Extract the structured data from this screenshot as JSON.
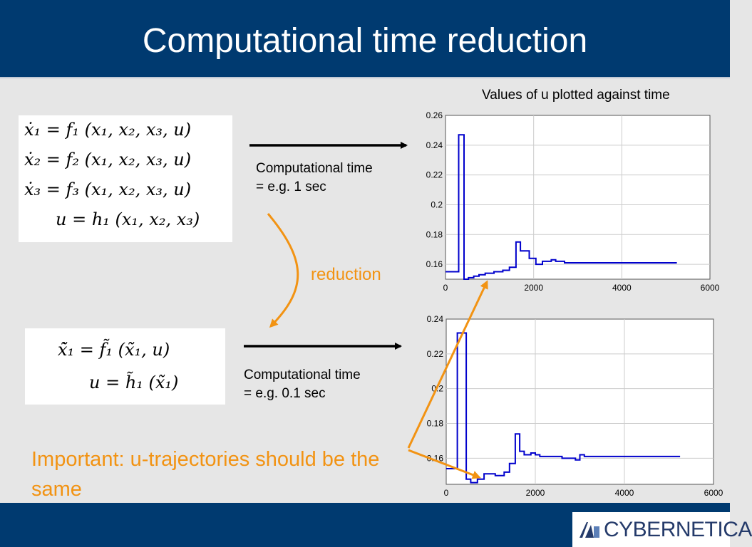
{
  "slide": {
    "title": "Computational time reduction",
    "chart_heading": "Values of u plotted against time",
    "reduction_label": "reduction",
    "important_note": "Important: u-trajectories should be the same",
    "logo_text": "CYBERNETICA"
  },
  "full_model": {
    "equations": [
      "ẋ₁ = f₁ (x₁, x₂, x₃, u)",
      "ẋ₂ = f₂ (x₁, x₂, x₃, u)",
      "ẋ₃ = f₃ (x₁, x₂, x₃, u)",
      "u = h₁ (x₁, x₂, x₃)"
    ],
    "time_line1": "Computational time",
    "time_line2": "= e.g. 1 sec"
  },
  "reduced_model": {
    "equations": [
      "x̃̇₁ = f̃₁ (x̃₁, u)",
      "u = h̃₁ (x̃₁)"
    ],
    "time_line1": "Computational time",
    "time_line2": "= e.g. 0.1 sec"
  },
  "colors": {
    "header": "#003a70",
    "accent": "#f29313",
    "series": "#0000cc"
  },
  "chart_data": [
    {
      "type": "line",
      "title": "",
      "xlabel": "",
      "ylabel": "",
      "xlim": [
        0,
        6000
      ],
      "ylim": [
        0.15,
        0.26
      ],
      "xticks": [
        "0",
        "2000",
        "4000",
        "6000"
      ],
      "xtick_values": [
        0,
        2000,
        4000,
        6000
      ],
      "yticks": [
        "0.16",
        "0.18",
        "0.2",
        "0.22",
        "0.24",
        "0.26"
      ],
      "ytick_values": [
        0.16,
        0.18,
        0.2,
        0.22,
        0.24,
        0.26
      ],
      "grid": true,
      "series": [
        {
          "x": [
            0,
            300,
            300,
            420,
            420,
            520,
            520,
            640,
            640,
            760,
            760,
            900,
            900,
            1100,
            1100,
            1300,
            1300,
            1450,
            1450,
            1600,
            1600,
            1700,
            1700,
            1900,
            1900,
            2050,
            2050,
            2200,
            2200,
            2400,
            2400,
            2500,
            2500,
            2700,
            2700,
            3000,
            3000,
            5250
          ],
          "y": [
            0.155,
            0.155,
            0.247,
            0.247,
            0.15,
            0.15,
            0.151,
            0.151,
            0.152,
            0.152,
            0.153,
            0.153,
            0.154,
            0.154,
            0.155,
            0.155,
            0.156,
            0.156,
            0.158,
            0.158,
            0.175,
            0.175,
            0.169,
            0.169,
            0.164,
            0.164,
            0.16,
            0.16,
            0.162,
            0.162,
            0.163,
            0.163,
            0.162,
            0.162,
            0.161,
            0.161,
            0.161,
            0.161
          ]
        }
      ]
    },
    {
      "type": "line",
      "title": "",
      "xlabel": "",
      "ylabel": "",
      "xlim": [
        0,
        6000
      ],
      "ylim": [
        0.145,
        0.24
      ],
      "xticks": [
        "0",
        "2000",
        "4000",
        "6000"
      ],
      "xtick_values": [
        0,
        2000,
        4000,
        6000
      ],
      "yticks": [
        "0.16",
        "0.18",
        "0.2",
        "0.22",
        "0.24"
      ],
      "ytick_values": [
        0.16,
        0.18,
        0.2,
        0.22,
        0.24
      ],
      "grid": true,
      "series": [
        {
          "x": [
            0,
            250,
            250,
            450,
            450,
            550,
            550,
            700,
            700,
            850,
            850,
            1100,
            1100,
            1300,
            1300,
            1420,
            1420,
            1550,
            1550,
            1650,
            1650,
            1750,
            1750,
            1900,
            1900,
            2000,
            2000,
            2100,
            2100,
            2300,
            2300,
            2600,
            2600,
            2900,
            2900,
            3000,
            3000,
            3100,
            3100,
            3200,
            3200,
            4000,
            4000,
            5250
          ],
          "y": [
            0.154,
            0.154,
            0.232,
            0.232,
            0.148,
            0.148,
            0.146,
            0.146,
            0.148,
            0.148,
            0.151,
            0.151,
            0.15,
            0.15,
            0.152,
            0.152,
            0.157,
            0.157,
            0.174,
            0.174,
            0.164,
            0.164,
            0.162,
            0.162,
            0.163,
            0.163,
            0.162,
            0.162,
            0.161,
            0.161,
            0.161,
            0.161,
            0.16,
            0.16,
            0.159,
            0.159,
            0.162,
            0.162,
            0.161,
            0.161,
            0.161,
            0.161,
            0.161,
            0.161
          ]
        }
      ]
    }
  ]
}
